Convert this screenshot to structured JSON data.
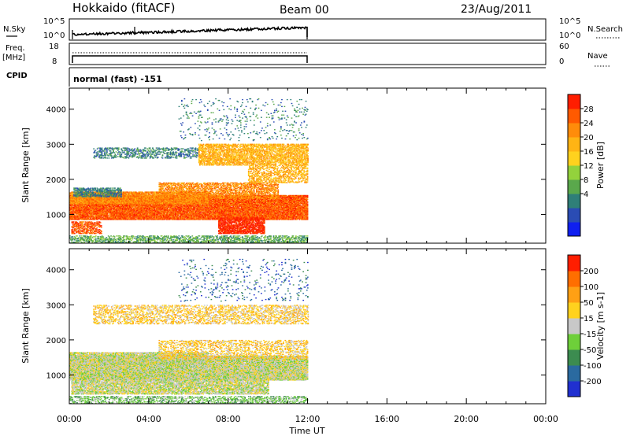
{
  "header": {
    "station": "Hokkaido (fitACF)",
    "beam": "Beam 00",
    "date": "23/Aug/2011"
  },
  "panels": {
    "nsky": {
      "left_label": "N.Sky",
      "right_label": "N.Search",
      "left_ticks": [
        "10^5",
        "10^0"
      ],
      "right_ticks": [
        "10^5",
        "10^0"
      ]
    },
    "freq": {
      "left_label_1": "Freq.",
      "left_label_2": "[MHz]",
      "right_label": "Nave",
      "left_ticks": [
        "18",
        "8"
      ],
      "right_ticks": [
        "60",
        "0"
      ]
    },
    "cpid": {
      "label": "CPID",
      "text": "normal (fast) -151"
    }
  },
  "chart_data": [
    {
      "type": "heatmap",
      "title": "",
      "ylabel": "Slant Range [km]",
      "xlabel": "",
      "x_range_hours": [
        0,
        24
      ],
      "ylim": [
        180,
        4600
      ],
      "y_ticks": [
        1000,
        2000,
        3000,
        4000
      ],
      "x_data_end": "12:00",
      "colorbar": {
        "label": "Power [dB]",
        "ticks": [
          "28",
          "24",
          "20",
          "16",
          "12",
          "8",
          "4"
        ],
        "colors": [
          "#0f1ff0",
          "#2a4cb4",
          "#2f7f78",
          "#5aa84c",
          "#93d23c",
          "#ffd21e",
          "#ffb414",
          "#ff8c0a",
          "#ff5a00",
          "#ff1e00"
        ]
      },
      "regions": [
        {
          "t0": 0.0,
          "t1": 12.0,
          "r0": 850,
          "r1": 1550,
          "level": 8,
          "density": 0.92
        },
        {
          "t0": 0.0,
          "t1": 7.0,
          "r0": 1300,
          "r1": 1650,
          "level": 7,
          "density": 0.8
        },
        {
          "t0": 4.5,
          "t1": 10.5,
          "r0": 1450,
          "r1": 1900,
          "level": 7,
          "density": 0.55
        },
        {
          "t0": 0.2,
          "t1": 2.6,
          "r0": 1500,
          "r1": 1750,
          "level": 2,
          "density": 0.55
        },
        {
          "t0": 0.1,
          "t1": 1.6,
          "r0": 450,
          "r1": 800,
          "level": 8,
          "density": 0.55
        },
        {
          "t0": 7.5,
          "t1": 9.8,
          "r0": 450,
          "r1": 900,
          "level": 9,
          "density": 0.75
        },
        {
          "t0": 1.2,
          "t1": 6.5,
          "r0": 2600,
          "r1": 2900,
          "level": 2,
          "density": 0.35
        },
        {
          "t0": 6.5,
          "t1": 12.0,
          "r0": 2400,
          "r1": 3000,
          "level": 6,
          "density": 0.6
        },
        {
          "t0": 0.0,
          "t1": 12.0,
          "r0": 180,
          "r1": 400,
          "level": 3,
          "density": 0.45
        },
        {
          "t0": 5.5,
          "t1": 12.0,
          "r0": 3100,
          "r1": 4300,
          "level": 2,
          "density": 0.05
        },
        {
          "t0": 9.0,
          "t1": 12.0,
          "r0": 1900,
          "r1": 2400,
          "level": 6,
          "density": 0.4
        }
      ]
    },
    {
      "type": "heatmap",
      "title": "",
      "ylabel": "Slant Range [km]",
      "xlabel": "Time UT",
      "x_range_hours": [
        0,
        24
      ],
      "x_ticks": [
        "00:00",
        "04:00",
        "08:00",
        "12:00",
        "16:00",
        "20:00",
        "00:00"
      ],
      "ylim": [
        180,
        4600
      ],
      "y_ticks": [
        1000,
        2000,
        3000,
        4000
      ],
      "x_data_end": "12:00",
      "colorbar": {
        "label": "Velocity [m s-1]",
        "ticks": [
          "200",
          "100",
          "50",
          "15",
          "-15",
          "-50",
          "-100",
          "-200"
        ],
        "colors": [
          "#2030d0",
          "#2a6aa0",
          "#3c8c50",
          "#6ecf3a",
          "#c8c8c8",
          "#ffd21e",
          "#ffa014",
          "#ff6e00",
          "#ff1e00"
        ]
      },
      "regions": [
        {
          "t0": 0.0,
          "t1": 12.0,
          "r0": 850,
          "r1": 1550,
          "level": 4,
          "density": 0.92
        },
        {
          "t0": 0.0,
          "t1": 7.0,
          "r0": 1300,
          "r1": 1650,
          "level": 4,
          "density": 0.8
        },
        {
          "t0": 0.1,
          "t1": 10.0,
          "r0": 450,
          "r1": 900,
          "level": 4,
          "density": 0.7
        },
        {
          "t0": 4.5,
          "t1": 12.0,
          "r0": 1450,
          "r1": 2000,
          "level": 5,
          "density": 0.35
        },
        {
          "t0": 1.2,
          "t1": 12.0,
          "r0": 2450,
          "r1": 3000,
          "level": 5,
          "density": 0.35
        },
        {
          "t0": 0.0,
          "t1": 12.0,
          "r0": 180,
          "r1": 400,
          "level": 3,
          "density": 0.4
        },
        {
          "t0": 5.5,
          "t1": 12.0,
          "r0": 3100,
          "r1": 4300,
          "level": 1,
          "density": 0.05
        }
      ]
    }
  ]
}
